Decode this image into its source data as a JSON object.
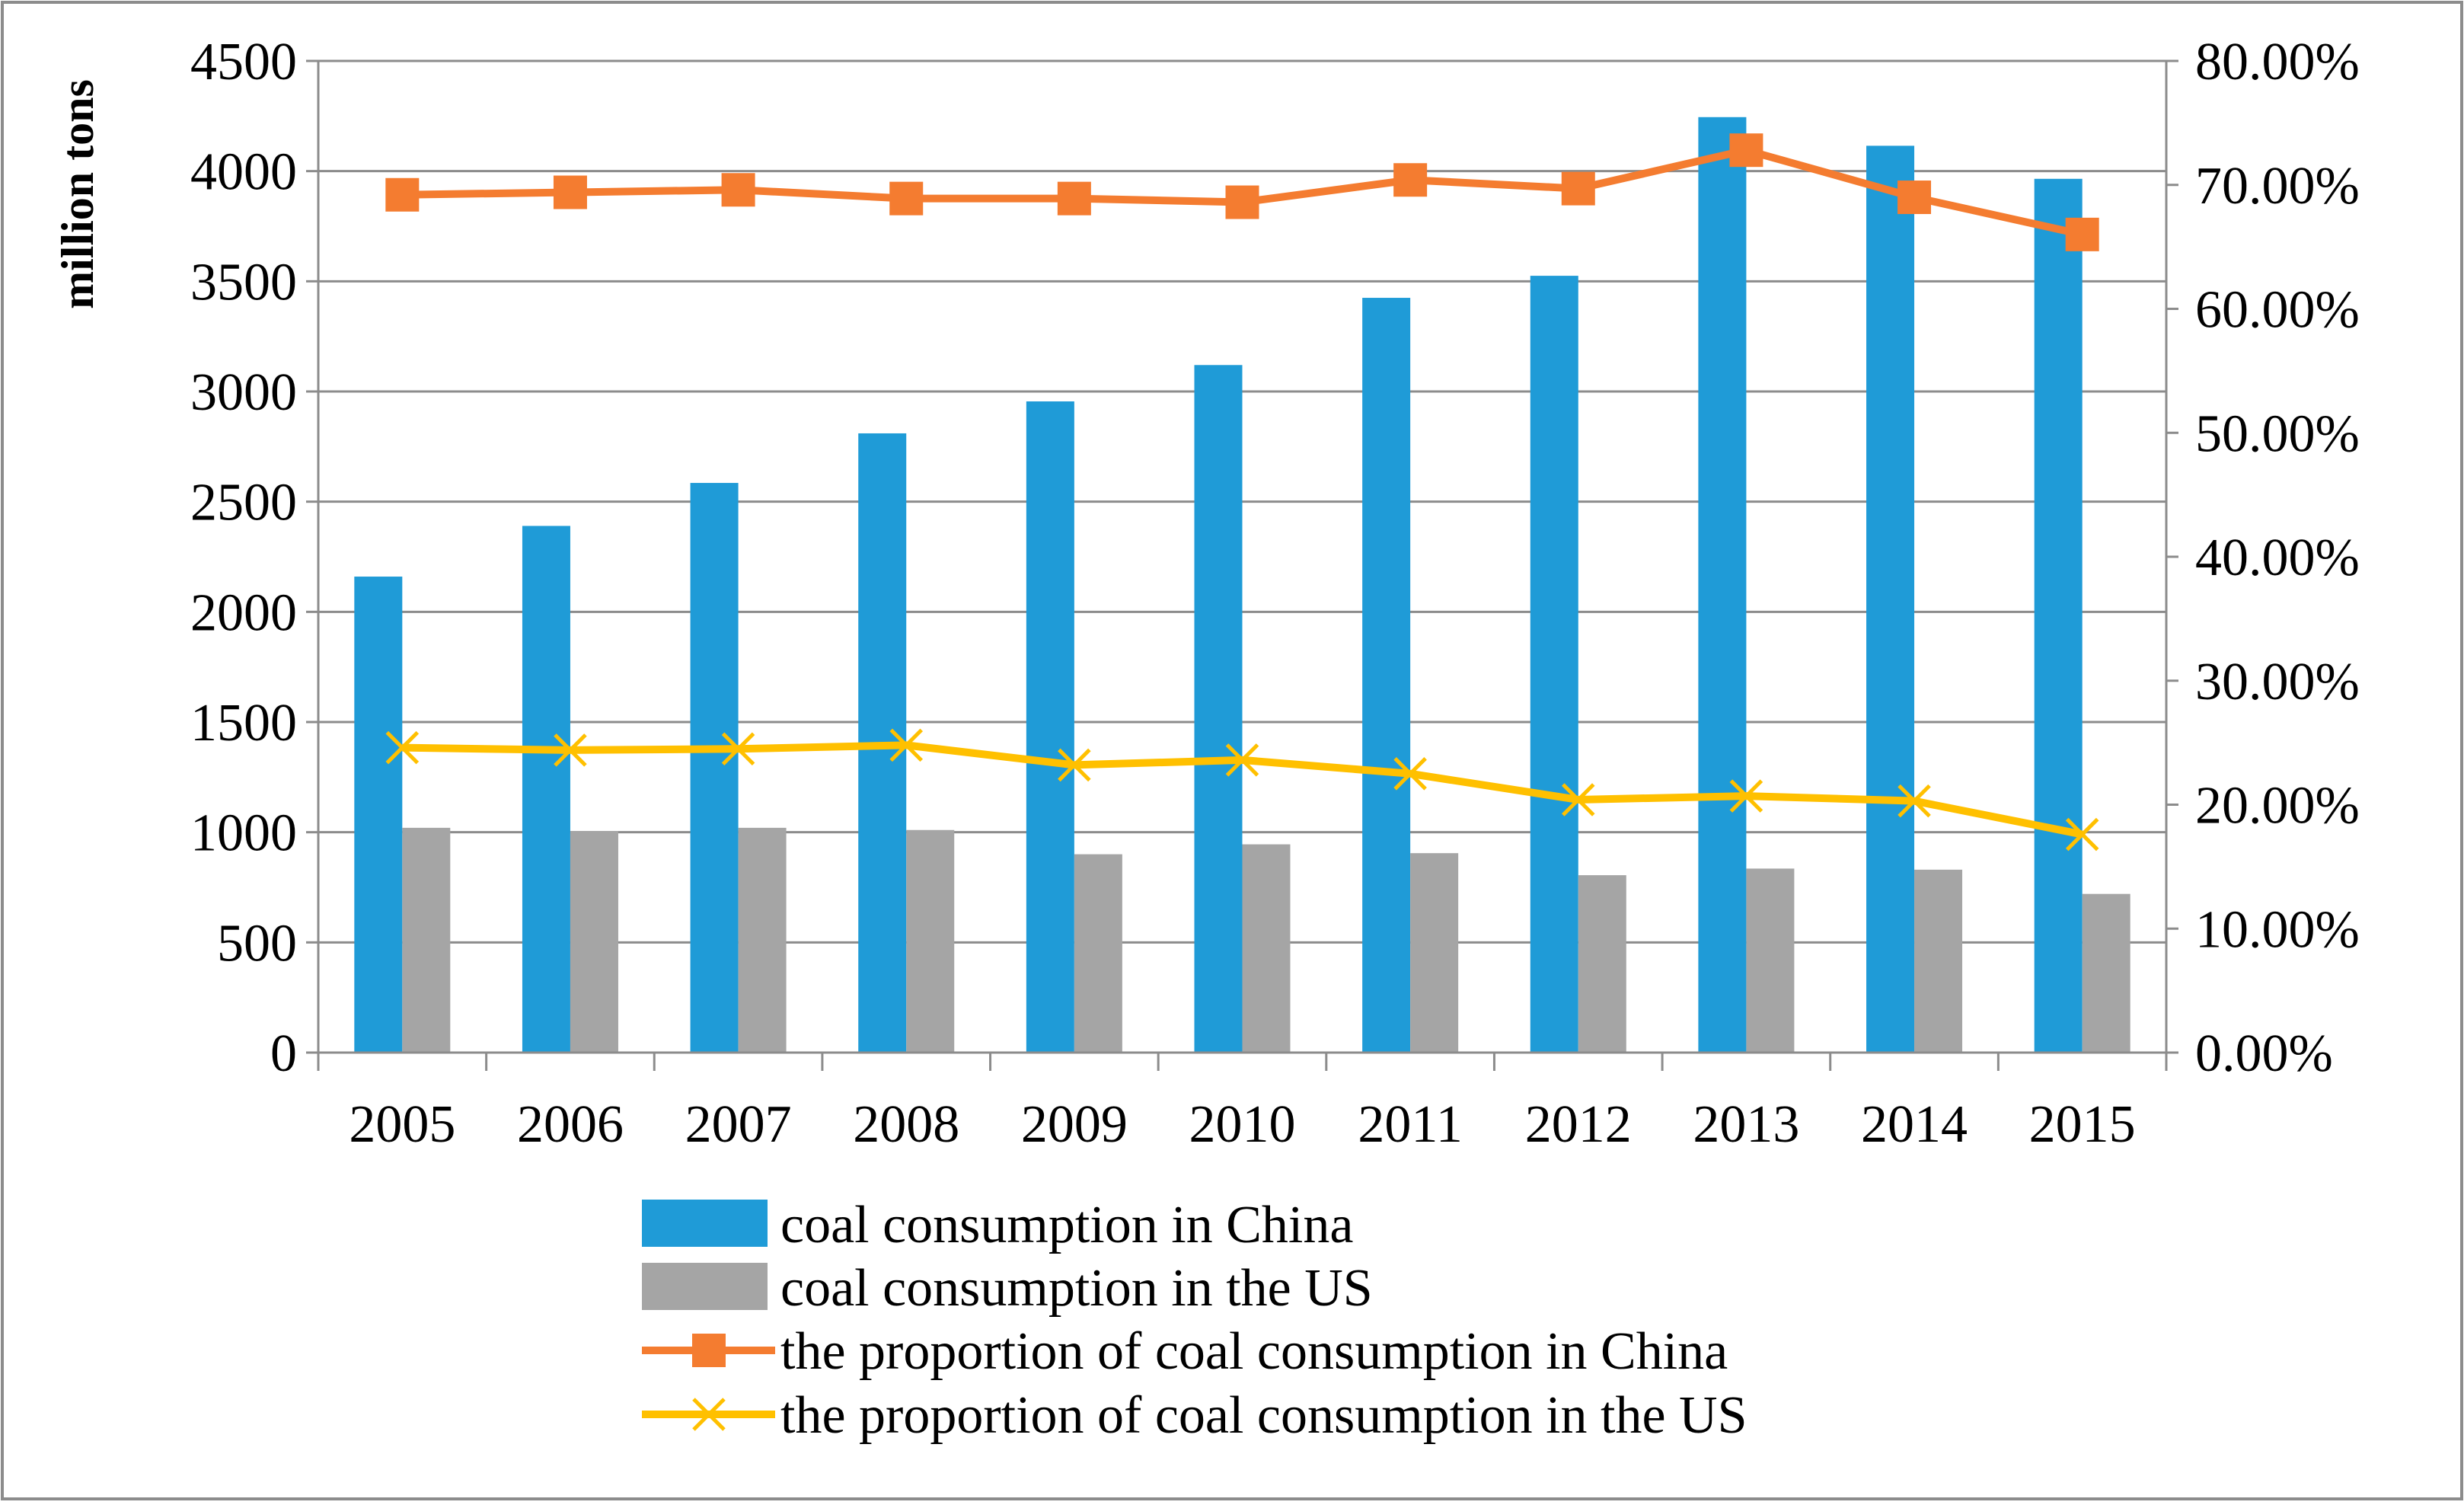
{
  "chart_data": {
    "type": "bar",
    "title": "",
    "categories": [
      "2005",
      "2006",
      "2007",
      "2008",
      "2009",
      "2010",
      "2011",
      "2012",
      "2013",
      "2014",
      "2015"
    ],
    "y_left": {
      "label": "million tons",
      "ylim": [
        0,
        4500
      ],
      "ticks": [
        "0",
        "500",
        "1000",
        "1500",
        "2000",
        "2500",
        "3000",
        "3500",
        "4000",
        "4500"
      ]
    },
    "y_right": {
      "label": "",
      "ylim": [
        0,
        80
      ],
      "ticks": [
        "0.00%",
        "10.00%",
        "20.00%",
        "30.00%",
        "40.00%",
        "50.00%",
        "60.00%",
        "70.00%",
        "80.00%"
      ]
    },
    "grid": true,
    "legend_position": "bottom",
    "series": [
      {
        "name": "coal consumption in China",
        "kind": "bar",
        "axis": "left",
        "color": "#1F9BD7",
        "values": [
          2160,
          2390,
          2585,
          2810,
          2955,
          3120,
          3425,
          3525,
          4245,
          4115,
          3965
        ]
      },
      {
        "name": "coal consumption in the US",
        "kind": "bar",
        "axis": "left",
        "color": "#A5A5A5",
        "values": [
          1020,
          1005,
          1020,
          1010,
          900,
          945,
          905,
          805,
          835,
          830,
          720
        ]
      },
      {
        "name": "the proportion of coal consumption in China",
        "kind": "line",
        "marker": "square",
        "axis": "right",
        "color": "#F47C30",
        "values": [
          69.2,
          69.4,
          69.6,
          68.9,
          68.9,
          68.6,
          70.4,
          69.7,
          72.8,
          69.0,
          66.0
        ]
      },
      {
        "name": "the proportion of coal consumption in the US",
        "kind": "line",
        "marker": "x",
        "axis": "right",
        "color": "#FFC000",
        "values": [
          24.6,
          24.4,
          24.5,
          24.8,
          23.2,
          23.6,
          22.5,
          20.4,
          20.7,
          20.3,
          17.6
        ]
      }
    ]
  }
}
